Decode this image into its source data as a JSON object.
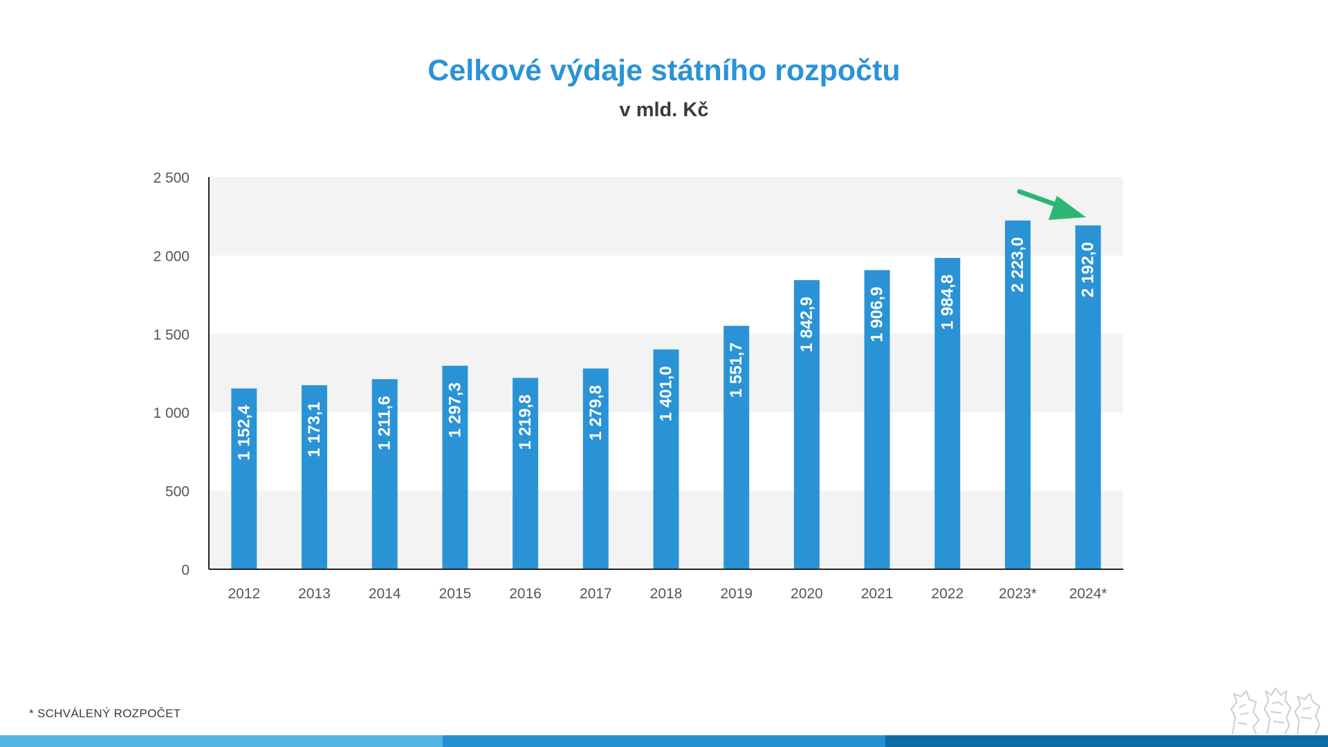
{
  "title": "Celkové výdaje státního rozpočtu",
  "subtitle": "v mld. Kč",
  "footnote": "* SCHVÁLENÝ ROZPOČET",
  "colors": {
    "bar": "#2a93d5",
    "title": "#2a93d5",
    "band": "#f3f3f3",
    "arrow": "#2bb673",
    "bottom_bar": [
      "#55b4e6",
      "#2490d2",
      "#0d6ba8"
    ]
  },
  "logo_icon": "lion-emblem-icon",
  "arrow_icon": "down-trend-arrow-icon",
  "chart_data": {
    "type": "bar",
    "title": "Celkové výdaje státního rozpočtu",
    "subtitle": "v mld. Kč",
    "categories": [
      "2012",
      "2013",
      "2014",
      "2015",
      "2016",
      "2017",
      "2018",
      "2019",
      "2020",
      "2021",
      "2022",
      "2023*",
      "2024*"
    ],
    "values": [
      1152.4,
      1173.1,
      1211.6,
      1297.3,
      1219.8,
      1279.8,
      1401.0,
      1551.7,
      1842.9,
      1906.9,
      1984.8,
      2223.0,
      2192.0
    ],
    "value_labels": [
      "1 152,4",
      "1 173,1",
      "1 211,6",
      "1 297,3",
      "1 219,8",
      "1 279,8",
      "1 401,0",
      "1 551,7",
      "1 842,9",
      "1 906,9",
      "1 984,8",
      "2 223,0",
      "2 192,0"
    ],
    "yticks": [
      0,
      500,
      1000,
      1500,
      2000,
      2500
    ],
    "ytick_labels": [
      "0",
      "500",
      "1 000",
      "1 500",
      "2 000",
      "2 500"
    ],
    "ylim": [
      0,
      2500
    ],
    "xlabel": "",
    "ylabel": "",
    "grid": "alternating bands",
    "legend": "none",
    "annotation": "arrow pointing down from 2023* to 2024*"
  }
}
